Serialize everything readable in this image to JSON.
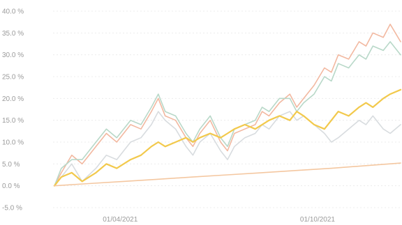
{
  "chart_data": {
    "type": "line",
    "title": "",
    "xlabel": "",
    "ylabel": "",
    "ylim": [
      -5,
      40
    ],
    "yticks": [
      "40.0 %",
      "35.0 %",
      "30.0 %",
      "25.0 %",
      "20.0 %",
      "15.0 %",
      "10.0 %",
      "5.0 %",
      "0.0 %",
      "-5.0 %"
    ],
    "ytick_values": [
      40,
      35,
      30,
      25,
      20,
      15,
      10,
      5,
      0,
      -5
    ],
    "xticks": [
      "01/04/2021",
      "01/10/2021"
    ],
    "xtick_positions": [
      0.19,
      0.76
    ],
    "x_domain": [
      0,
      1
    ],
    "grid": true,
    "legend": "none",
    "series": [
      {
        "color": "#f2b8a0",
        "x": [
          0,
          0.02,
          0.05,
          0.08,
          0.12,
          0.15,
          0.18,
          0.22,
          0.25,
          0.28,
          0.3,
          0.32,
          0.35,
          0.38,
          0.4,
          0.42,
          0.45,
          0.48,
          0.5,
          0.52,
          0.55,
          0.58,
          0.6,
          0.62,
          0.65,
          0.68,
          0.7,
          0.72,
          0.75,
          0.78,
          0.8,
          0.82,
          0.85,
          0.88,
          0.9,
          0.92,
          0.95,
          0.97,
          1.0
        ],
        "values": [
          0,
          3,
          7,
          5,
          9,
          12,
          10,
          14,
          13,
          17,
          20,
          16,
          15,
          11,
          9,
          12,
          15,
          10,
          8,
          12,
          13,
          14,
          17,
          16,
          19,
          21,
          18,
          20,
          23,
          27,
          26,
          30,
          29,
          33,
          32,
          35,
          34,
          37,
          33
        ]
      },
      {
        "color": "#b8d8c8",
        "x": [
          0,
          0.02,
          0.05,
          0.08,
          0.12,
          0.15,
          0.18,
          0.22,
          0.25,
          0.28,
          0.3,
          0.32,
          0.35,
          0.38,
          0.4,
          0.42,
          0.45,
          0.48,
          0.5,
          0.52,
          0.55,
          0.58,
          0.6,
          0.62,
          0.65,
          0.68,
          0.7,
          0.72,
          0.75,
          0.78,
          0.8,
          0.82,
          0.85,
          0.88,
          0.9,
          0.92,
          0.95,
          0.97,
          1.0
        ],
        "values": [
          0,
          4,
          6,
          6,
          10,
          13,
          11,
          15,
          14,
          18,
          21,
          17,
          16,
          12,
          10,
          13,
          16,
          11,
          9,
          13,
          14,
          15,
          18,
          17,
          20,
          20,
          17,
          19,
          21,
          25,
          24,
          28,
          27,
          30,
          29,
          32,
          31,
          33,
          30
        ]
      },
      {
        "color": "#d8dcdf",
        "x": [
          0,
          0.02,
          0.05,
          0.08,
          0.12,
          0.15,
          0.18,
          0.22,
          0.25,
          0.28,
          0.3,
          0.32,
          0.35,
          0.38,
          0.4,
          0.42,
          0.45,
          0.48,
          0.5,
          0.52,
          0.55,
          0.58,
          0.6,
          0.62,
          0.65,
          0.68,
          0.7,
          0.72,
          0.75,
          0.78,
          0.8,
          0.82,
          0.85,
          0.88,
          0.9,
          0.92,
          0.95,
          0.97,
          1.0
        ],
        "values": [
          0,
          2,
          5,
          1,
          4,
          7,
          6,
          10,
          11,
          14,
          17,
          15,
          13,
          9,
          7,
          10,
          12,
          8,
          6,
          9,
          11,
          12,
          14,
          13,
          16,
          17,
          15,
          16,
          14,
          12,
          10,
          11,
          13,
          15,
          14,
          16,
          13,
          12,
          14
        ]
      },
      {
        "color": "#f2c94c",
        "x": [
          0,
          0.02,
          0.05,
          0.08,
          0.12,
          0.15,
          0.18,
          0.22,
          0.25,
          0.28,
          0.3,
          0.32,
          0.35,
          0.38,
          0.4,
          0.42,
          0.45,
          0.48,
          0.5,
          0.52,
          0.55,
          0.58,
          0.6,
          0.62,
          0.65,
          0.68,
          0.7,
          0.72,
          0.75,
          0.78,
          0.8,
          0.82,
          0.85,
          0.88,
          0.9,
          0.92,
          0.95,
          0.97,
          1.0
        ],
        "values": [
          0,
          2,
          3,
          1,
          3,
          5,
          4,
          6,
          7,
          9,
          10,
          9,
          10,
          11,
          10,
          11,
          12,
          11,
          12,
          13,
          14,
          13,
          14,
          15,
          16,
          15,
          17,
          16,
          14,
          13,
          15,
          17,
          16,
          18,
          19,
          18,
          20,
          21,
          22
        ]
      },
      {
        "color": "#f4c7a0",
        "x": [
          0,
          0.1,
          0.2,
          0.3,
          0.4,
          0.5,
          0.6,
          0.7,
          0.8,
          0.9,
          1.0
        ],
        "values": [
          0,
          0.5,
          1.0,
          1.5,
          2.0,
          2.5,
          3.0,
          3.5,
          4.0,
          4.6,
          5.2
        ]
      }
    ]
  }
}
